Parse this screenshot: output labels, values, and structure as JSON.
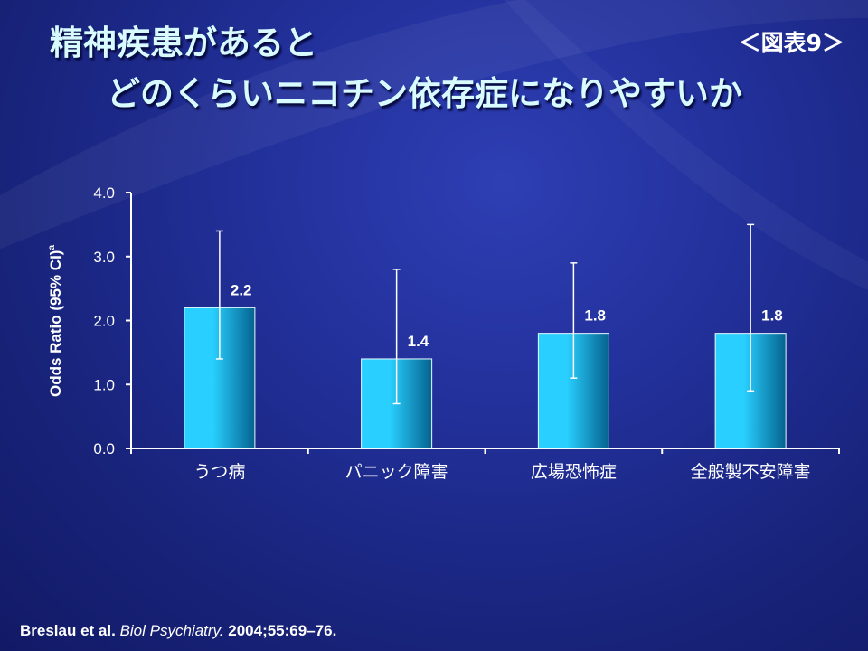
{
  "slide": {
    "title_line1": "精神疾患があると",
    "title_line2": "どのくらいニコチン依存症になりやすいか",
    "figure_label": "＜図表9＞",
    "citation": {
      "authors": "Breslau et al.",
      "journal": "Biol Psychiatry.",
      "details": "2004;55:69–76."
    }
  },
  "colors": {
    "background": "#1a2580",
    "bar_light": "#29d0ff",
    "bar_dark": "#05628f",
    "text": "#ffffff",
    "title": "#d8fbff"
  },
  "chart_data": {
    "type": "bar",
    "categories": [
      "うつ病",
      "パニック障害",
      "広場恐怖症",
      "全般製不安障害"
    ],
    "values": [
      2.2,
      1.4,
      1.8,
      1.8
    ],
    "value_labels": [
      "2.2",
      "1.4",
      "1.8",
      "1.8"
    ],
    "ci_lower": [
      1.4,
      0.7,
      1.1,
      0.9
    ],
    "ci_upper": [
      3.4,
      2.8,
      2.9,
      3.5
    ],
    "ylabel": "Odds Ratio (95% CI)",
    "ylabel_superscript": "a",
    "ylim": [
      0,
      4
    ],
    "yticks": [
      0,
      1,
      2,
      3,
      4
    ],
    "ytick_labels": [
      "0.0",
      "1.0",
      "2.0",
      "3.0",
      "4.0"
    ],
    "grid": false,
    "legend": "none"
  }
}
